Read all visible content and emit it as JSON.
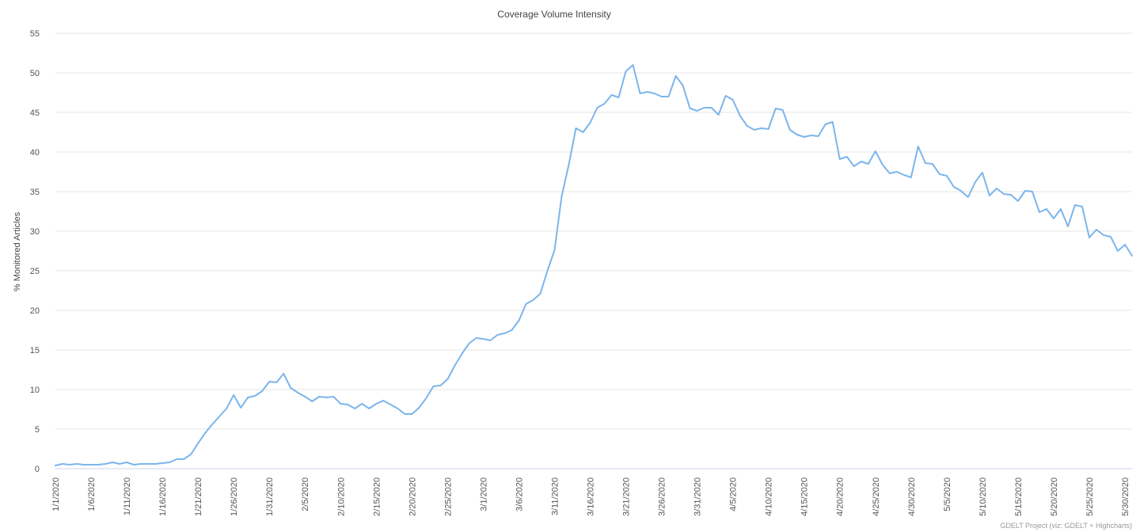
{
  "chart_data": {
    "type": "line",
    "title": "Coverage Volume Intensity",
    "ylabel": "% Monitored Articles",
    "xlabel": "",
    "ylim": [
      0,
      55
    ],
    "yticks": [
      0,
      5,
      10,
      15,
      20,
      25,
      30,
      35,
      40,
      45,
      50,
      55
    ],
    "x_start": "1/1/2020",
    "x_end": "5/31/2020",
    "xticks": [
      "1/1/2020",
      "1/6/2020",
      "1/11/2020",
      "1/16/2020",
      "1/21/2020",
      "1/26/2020",
      "1/31/2020",
      "2/5/2020",
      "2/10/2020",
      "2/15/2020",
      "2/20/2020",
      "2/25/2020",
      "3/1/2020",
      "3/6/2020",
      "3/11/2020",
      "3/16/2020",
      "3/21/2020",
      "3/26/2020",
      "3/31/2020",
      "4/5/2020",
      "4/10/2020",
      "4/15/2020",
      "4/20/2020",
      "4/25/2020",
      "4/30/2020",
      "5/5/2020",
      "5/10/2020",
      "5/15/2020",
      "5/20/2020",
      "5/25/2020",
      "5/30/2020"
    ],
    "grid": true,
    "legend": "none",
    "series": [
      {
        "color": "#7cb5ec",
        "values": [
          0.4,
          0.6,
          0.5,
          0.6,
          0.5,
          0.5,
          0.5,
          0.6,
          0.8,
          0.6,
          0.8,
          0.5,
          0.6,
          0.6,
          0.6,
          0.7,
          0.8,
          1.2,
          1.2,
          1.8,
          3.2,
          4.5,
          5.6,
          6.6,
          7.6,
          9.3,
          7.7,
          9.0,
          9.2,
          9.8,
          11.0,
          10.9,
          12.0,
          10.2,
          9.6,
          9.1,
          8.5,
          9.1,
          9.0,
          9.1,
          8.2,
          8.1,
          7.6,
          8.2,
          7.6,
          8.2,
          8.6,
          8.1,
          7.6,
          6.9,
          6.9,
          7.7,
          8.9,
          10.4,
          10.5,
          11.3,
          13.0,
          14.5,
          15.8,
          16.5,
          16.4,
          16.2,
          16.9,
          17.1,
          17.5,
          18.7,
          20.8,
          21.3,
          22.1,
          25.0,
          27.6,
          34.4,
          38.4,
          43.0,
          42.5,
          43.7,
          45.6,
          46.1,
          47.2,
          46.9,
          50.2,
          51.0,
          47.4,
          47.6,
          47.4,
          47.0,
          47.0,
          49.6,
          48.4,
          45.5,
          45.2,
          45.6,
          45.6,
          44.7,
          47.1,
          46.6,
          44.6,
          43.3,
          42.8,
          43.0,
          42.9,
          45.5,
          45.3,
          42.8,
          42.2,
          41.9,
          42.1,
          42.0,
          43.5,
          43.8,
          39.1,
          39.4,
          38.2,
          38.8,
          38.5,
          40.1,
          38.4,
          37.3,
          37.5,
          37.1,
          36.8,
          40.7,
          38.6,
          38.5,
          37.2,
          37.0,
          35.6,
          35.1,
          34.3,
          36.2,
          37.4,
          34.5,
          35.4,
          34.7,
          34.6,
          33.8,
          35.1,
          35.0,
          32.4,
          32.8,
          31.6,
          32.8,
          30.6,
          33.3,
          33.1,
          29.2,
          30.2,
          29.5,
          29.3,
          27.5,
          28.3,
          26.9
        ]
      }
    ]
  },
  "credit": "GDELT Project (viz: GDELT + Highcharts)"
}
